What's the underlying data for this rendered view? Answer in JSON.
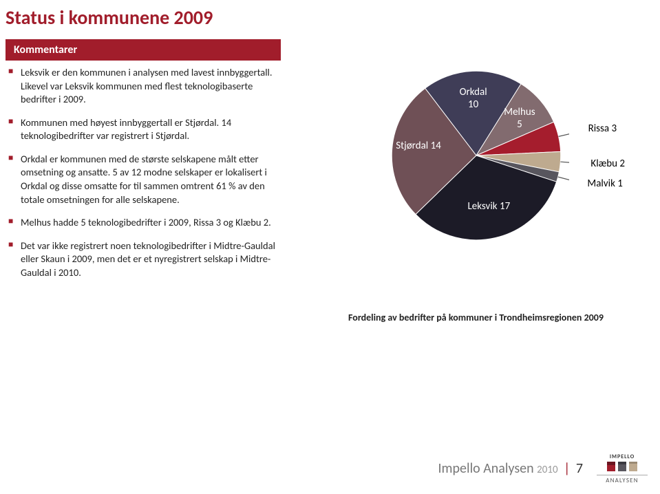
{
  "page": {
    "title": "Status i kommunene 2009",
    "comment_header": "Kommentarer",
    "bullets": [
      "Leksvik er den kommunen i analysen med lavest innbyggertall. Likevel var Leksvik kommunen med flest teknologibaserte bedrifter i 2009.",
      "Kommunen med høyest innbyggertall er Stjørdal. 14 teknologibedrifter var registrert i Stjørdal.",
      "Orkdal er kommunen med de største selskapene målt etter omsetning og ansatte. 5 av 12 modne selskaper er lokalisert i Orkdal og disse omsatte for til sammen omtrent 61 % av den totale omsetningen for alle selskapene.",
      "Melhus hadde 5 teknologibedrifter i 2009, Rissa 3 og Klæbu 2.",
      "Det var ikke registrert noen teknologibedrifter i Midtre-Gauldal eller Skaun i 2009, men det er et nyregistrert selskap i Midtre-Gauldal i 2010."
    ]
  },
  "chart": {
    "type": "pie",
    "caption": "Fordeling av bedrifter på kommuner i Trondheimsregionen 2009",
    "background_color": "#ffffff",
    "label_fontsize": 15,
    "label_color_inside": "#ffffff",
    "label_color_outside": "#000000",
    "slices": [
      {
        "label": "Orkdal",
        "secondary": "10",
        "value": 10,
        "color": "#3f3d57"
      },
      {
        "label": "Melhus",
        "secondary": "5",
        "value": 5,
        "color": "#826b6f"
      },
      {
        "label": "Rissa 3",
        "secondary": "",
        "value": 3,
        "color": "#a51d2d",
        "outside": true
      },
      {
        "label": "Klæbu 2",
        "secondary": "",
        "value": 2,
        "color": "#beaa8f",
        "outside": true
      },
      {
        "label": "Malvik 1",
        "secondary": "",
        "value": 1,
        "color": "#58565e",
        "outside": true
      },
      {
        "label": "Leksvik 17",
        "secondary": "",
        "value": 17,
        "color": "#1c1b27"
      },
      {
        "label": "Stjørdal 14",
        "secondary": "",
        "value": 14,
        "color": "#6f5056"
      }
    ]
  },
  "footer": {
    "brand": "Impello Analysen",
    "year": "2010",
    "page_number": "7",
    "logo_text": "ANALYSEN",
    "logo_brand": "IMPELLO"
  },
  "colors": {
    "accent": "#a11d2b",
    "text": "#222222",
    "muted": "#777777"
  }
}
